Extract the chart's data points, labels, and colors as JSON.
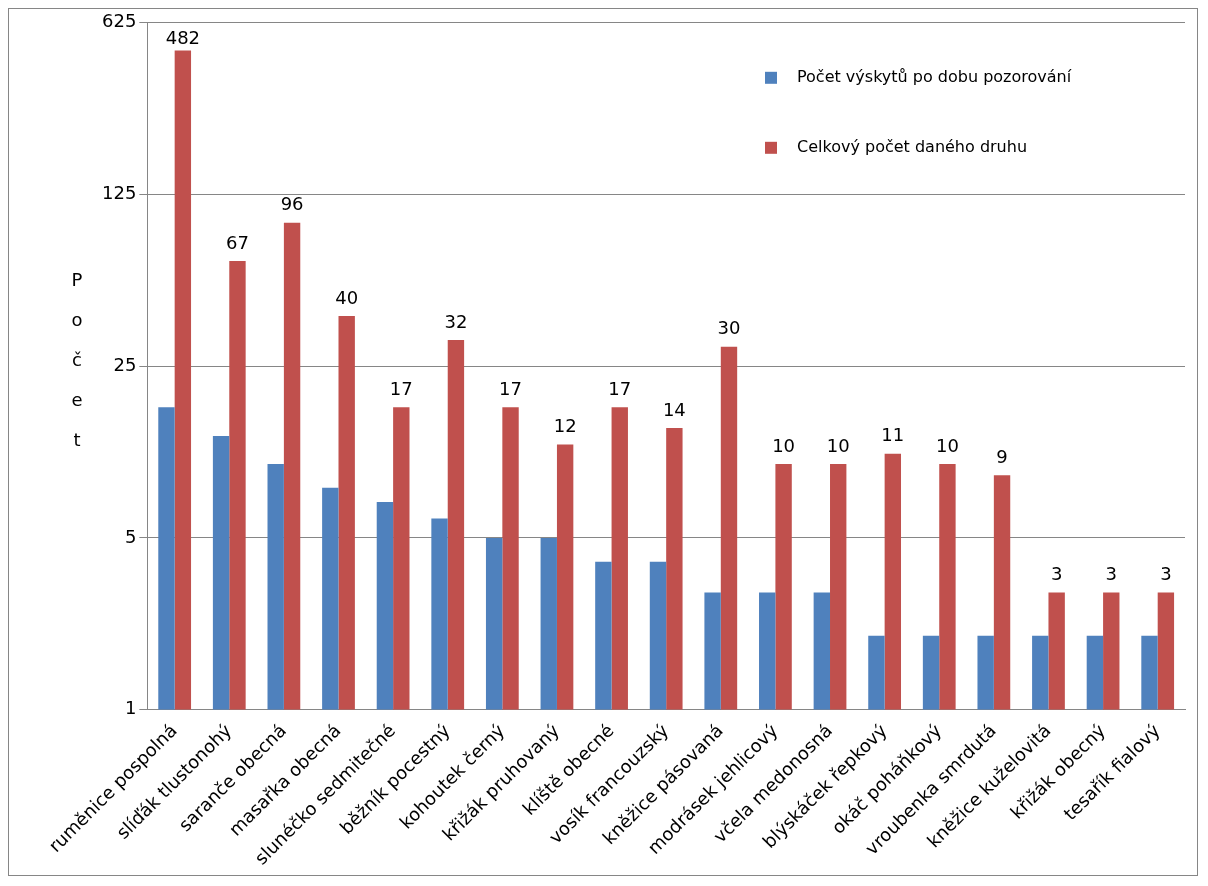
{
  "chart_data": {
    "type": "bar",
    "ylabel": "Počet",
    "categories": [
      "ruměnice pospolná",
      "slíďák tlustonohý",
      "saranče obecná",
      "masařka obecná",
      "slunéčko sedmitečné",
      "běžník pocestný",
      "kohoutek černý",
      "křižák pruhovaný",
      "klíště obecné",
      "vosík francouzský",
      "kněžice pásovaná",
      "modrásek jehlicový",
      "včela medonosná",
      "blýskáček řepkový",
      "okáč poháňkový",
      "vroubenka smrdutá",
      "kněžice kuželovitá",
      "křižák obecný",
      "tesařík fialový"
    ],
    "series": [
      {
        "name": "Počet výskytů po dobu pozorování",
        "color": "#4f81bd",
        "values": [
          17,
          13,
          10,
          8,
          7,
          6,
          5,
          5,
          4,
          4,
          3,
          3,
          3,
          2,
          2,
          2,
          2,
          2,
          2
        ]
      },
      {
        "name": "Celkový počet daného druhu",
        "color": "#c0504d",
        "values": [
          482,
          67,
          96,
          40,
          17,
          32,
          17,
          12,
          17,
          14,
          30,
          10,
          10,
          11,
          10,
          9,
          3,
          3,
          3
        ],
        "value_labels": [
          "482",
          "67",
          "96",
          "40",
          "17",
          "32",
          "17",
          "12",
          "17",
          "14",
          "30",
          "10",
          "10",
          "11",
          "10",
          "9",
          "3",
          "3",
          "3"
        ]
      }
    ],
    "log": true,
    "ylim": [
      1,
      625
    ],
    "yticks": [
      1,
      5,
      25,
      125,
      625
    ],
    "grid": "y",
    "legend": "top right"
  }
}
